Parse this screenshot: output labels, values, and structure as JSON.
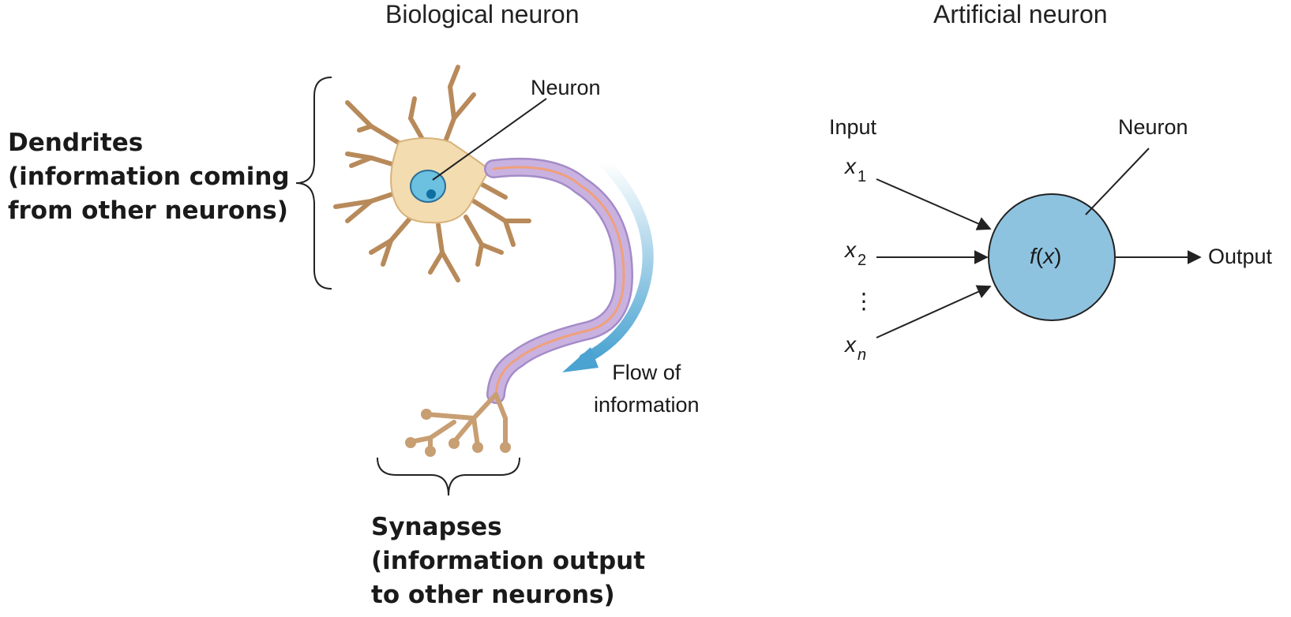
{
  "biological": {
    "title": "Biological neuron",
    "neuron_label": "Neuron",
    "dendrites_label": "Dendrites\n(information coming\nfrom other neurons)",
    "synapses_label": "Synapses\n(information output\nto other neurons)",
    "flow_label": "Flow of\ninformation"
  },
  "artificial": {
    "title": "Artificial neuron",
    "input_label": "Input",
    "neuron_label": "Neuron",
    "output_label": "Output",
    "x1": {
      "base": "x",
      "sub": "1"
    },
    "x2": {
      "base": "x",
      "sub": "2"
    },
    "xn": {
      "base": "x",
      "sub": "n"
    },
    "ellipsis": "⋮",
    "function": {
      "f": "f",
      "open": "(",
      "arg": "x",
      "close": ")"
    }
  },
  "colors": {
    "cell_body": "#f3dcb0",
    "dendrite": "#b88a5a",
    "nucleus": "#6cc0e0",
    "nucleolus": "#0e6fa0",
    "axon": "#c9b2e0",
    "axon_core": "#f0a07a",
    "flow_arrow": "#4aa3d1",
    "artificial_neuron": "#8ec3e0"
  }
}
